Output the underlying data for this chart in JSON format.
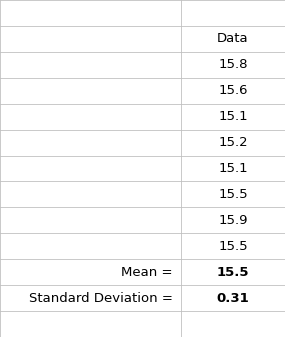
{
  "col2_header": "Data",
  "col2_data": [
    "15.8",
    "15.6",
    "15.1",
    "15.2",
    "15.1",
    "15.5",
    "15.9",
    "15.5"
  ],
  "mean_label": "Mean =",
  "mean_value": "15.5",
  "std_label": "Standard Deviation =",
  "std_value": "0.31",
  "border_color": "#c0c0c0",
  "text_color": "#000000",
  "font_size": 9.5,
  "col_split": 0.635,
  "n_rows": 13
}
